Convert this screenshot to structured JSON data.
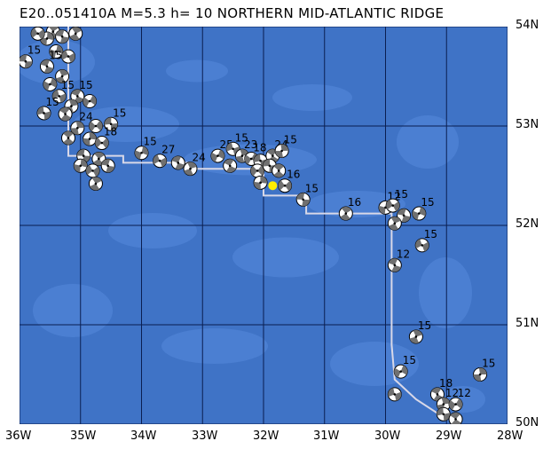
{
  "title": "E20..051410A M=5.3 h= 10 NORTHERN MID-ATLANTIC RIDGE",
  "event": {
    "id_fragment": "051410A",
    "magnitude_label": "M=5.3",
    "depth_label": "h= 10",
    "region": "NORTHERN MID-ATLANTIC RIDGE"
  },
  "axes": {
    "latitude_labels": [
      "54N",
      "53N",
      "52N",
      "51N",
      "50N"
    ],
    "longitude_labels": [
      "36W",
      "35W",
      "34W",
      "33W",
      "32W",
      "31W",
      "30W",
      "29W",
      "28W"
    ]
  },
  "map_extent": {
    "lon_min": -36,
    "lon_max": -28,
    "lat_min": 50,
    "lat_max": 54
  },
  "colors": {
    "ocean_deep": "#3f73c6",
    "ocean_shallow": "#5a8ee0",
    "ridge": "#6a9ce8",
    "grid": "#0a1e50",
    "plate_boundary": "#d8d8e8",
    "epicenter": "#ffee00"
  },
  "epicenter": {
    "lon": -31.85,
    "lat": 52.4
  },
  "plate_boundary": [
    [
      -35.2,
      54.0
    ],
    [
      -35.2,
      52.7
    ],
    [
      -34.3,
      52.7
    ],
    [
      -34.3,
      52.63
    ],
    [
      -33.2,
      52.63
    ],
    [
      -33.2,
      52.57
    ],
    [
      -32.0,
      52.57
    ],
    [
      -32.0,
      52.3
    ],
    [
      -31.3,
      52.3
    ],
    [
      -31.3,
      52.12
    ],
    [
      -29.9,
      52.12
    ],
    [
      -29.9,
      50.8
    ],
    [
      -29.85,
      50.45
    ],
    [
      -29.5,
      50.25
    ],
    [
      -29.0,
      50.05
    ]
  ],
  "mechanisms": [
    {
      "lon": -35.9,
      "lat": 53.65,
      "label": "15"
    },
    {
      "lon": -35.45,
      "lat": 53.95,
      "label": "15"
    },
    {
      "lon": -35.55,
      "lat": 53.88,
      "label": ""
    },
    {
      "lon": -35.7,
      "lat": 53.93,
      "label": ""
    },
    {
      "lon": -35.3,
      "lat": 53.9,
      "label": ""
    },
    {
      "lon": -35.08,
      "lat": 53.93,
      "label": ""
    },
    {
      "lon": -35.4,
      "lat": 53.75,
      "label": ""
    },
    {
      "lon": -35.2,
      "lat": 53.7,
      "label": ""
    },
    {
      "lon": -35.55,
      "lat": 53.6,
      "label": "15"
    },
    {
      "lon": -35.3,
      "lat": 53.5,
      "label": ""
    },
    {
      "lon": -35.5,
      "lat": 53.42,
      "label": ""
    },
    {
      "lon": -35.35,
      "lat": 53.3,
      "label": "15"
    },
    {
      "lon": -35.05,
      "lat": 53.3,
      "label": "15"
    },
    {
      "lon": -35.15,
      "lat": 53.2,
      "label": ""
    },
    {
      "lon": -34.85,
      "lat": 53.25,
      "label": ""
    },
    {
      "lon": -35.6,
      "lat": 53.13,
      "label": "15"
    },
    {
      "lon": -35.25,
      "lat": 53.12,
      "label": ""
    },
    {
      "lon": -35.05,
      "lat": 52.98,
      "label": "24"
    },
    {
      "lon": -34.75,
      "lat": 53.0,
      "label": ""
    },
    {
      "lon": -34.5,
      "lat": 53.02,
      "label": "15"
    },
    {
      "lon": -35.2,
      "lat": 52.88,
      "label": ""
    },
    {
      "lon": -34.85,
      "lat": 52.87,
      "label": ""
    },
    {
      "lon": -34.65,
      "lat": 52.83,
      "label": "18"
    },
    {
      "lon": -34.95,
      "lat": 52.7,
      "label": ""
    },
    {
      "lon": -34.7,
      "lat": 52.67,
      "label": ""
    },
    {
      "lon": -35.0,
      "lat": 52.6,
      "label": ""
    },
    {
      "lon": -34.8,
      "lat": 52.55,
      "label": ""
    },
    {
      "lon": -34.55,
      "lat": 52.6,
      "label": ""
    },
    {
      "lon": -34.75,
      "lat": 52.42,
      "label": ""
    },
    {
      "lon": -34.0,
      "lat": 52.73,
      "label": "15"
    },
    {
      "lon": -33.7,
      "lat": 52.65,
      "label": "27"
    },
    {
      "lon": -33.4,
      "lat": 52.63,
      "label": ""
    },
    {
      "lon": -33.2,
      "lat": 52.57,
      "label": "24"
    },
    {
      "lon": -32.75,
      "lat": 52.7,
      "label": "25"
    },
    {
      "lon": -32.5,
      "lat": 52.77,
      "label": "15"
    },
    {
      "lon": -32.55,
      "lat": 52.6,
      "label": ""
    },
    {
      "lon": -32.35,
      "lat": 52.7,
      "label": "23"
    },
    {
      "lon": -32.2,
      "lat": 52.67,
      "label": "18"
    },
    {
      "lon": -32.05,
      "lat": 52.65,
      "label": ""
    },
    {
      "lon": -31.85,
      "lat": 52.7,
      "label": "24"
    },
    {
      "lon": -31.7,
      "lat": 52.75,
      "label": "15"
    },
    {
      "lon": -32.1,
      "lat": 52.55,
      "label": ""
    },
    {
      "lon": -31.9,
      "lat": 52.6,
      "label": ""
    },
    {
      "lon": -31.75,
      "lat": 52.55,
      "label": ""
    },
    {
      "lon": -32.05,
      "lat": 52.43,
      "label": ""
    },
    {
      "lon": -31.65,
      "lat": 52.4,
      "label": "16"
    },
    {
      "lon": -31.35,
      "lat": 52.26,
      "label": "15"
    },
    {
      "lon": -30.65,
      "lat": 52.12,
      "label": "16"
    },
    {
      "lon": -30.0,
      "lat": 52.18,
      "label": "12"
    },
    {
      "lon": -29.88,
      "lat": 52.2,
      "label": "15"
    },
    {
      "lon": -29.7,
      "lat": 52.1,
      "label": ""
    },
    {
      "lon": -29.85,
      "lat": 52.02,
      "label": ""
    },
    {
      "lon": -29.45,
      "lat": 52.12,
      "label": "15"
    },
    {
      "lon": -29.4,
      "lat": 51.8,
      "label": "15"
    },
    {
      "lon": -29.85,
      "lat": 51.6,
      "label": "12"
    },
    {
      "lon": -29.5,
      "lat": 50.88,
      "label": "15"
    },
    {
      "lon": -29.75,
      "lat": 50.53,
      "label": "15"
    },
    {
      "lon": -29.85,
      "lat": 50.3,
      "label": ""
    },
    {
      "lon": -29.15,
      "lat": 50.3,
      "label": "18"
    },
    {
      "lon": -29.05,
      "lat": 50.2,
      "label": "12"
    },
    {
      "lon": -28.85,
      "lat": 50.2,
      "label": "12"
    },
    {
      "lon": -29.05,
      "lat": 50.1,
      "label": ""
    },
    {
      "lon": -28.85,
      "lat": 50.05,
      "label": ""
    },
    {
      "lon": -28.45,
      "lat": 50.5,
      "label": "15"
    }
  ]
}
